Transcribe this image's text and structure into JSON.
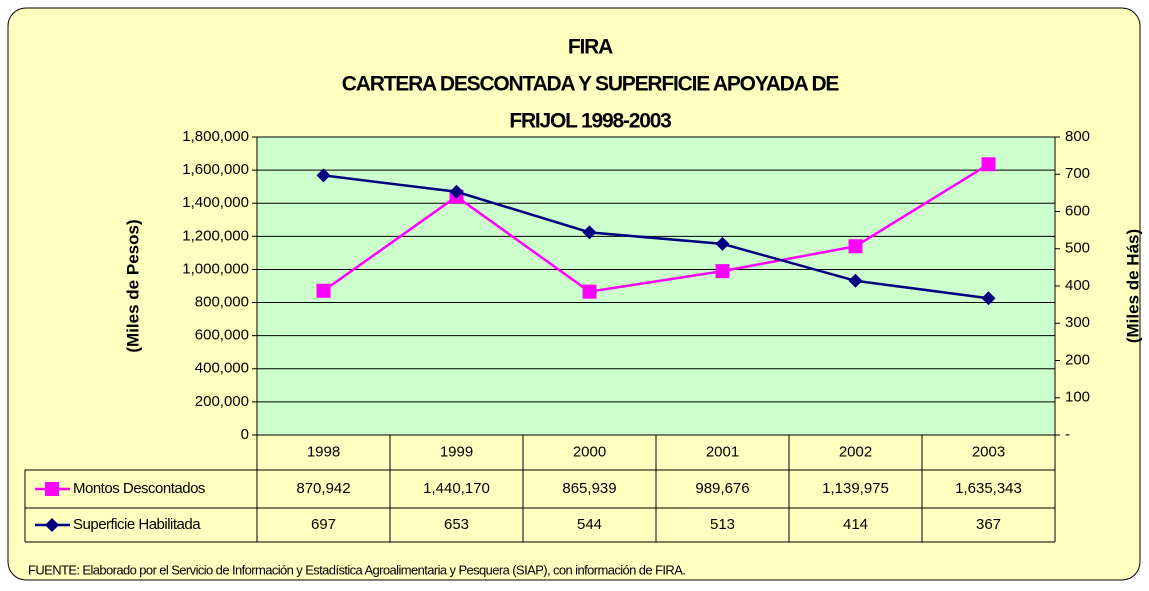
{
  "chart_data": {
    "type": "line",
    "title": [
      "FIRA",
      "CARTERA DESCONTADA Y SUPERFICIE APOYADA DE",
      "FRIJOL 1998-2003"
    ],
    "ylabel": "(Miles de Pesos)",
    "y2label": "(Miles de Hás)",
    "categories": [
      "1998",
      "1999",
      "2000",
      "2001",
      "2002",
      "2003"
    ],
    "series": [
      {
        "name": "Montos Descontados",
        "color": "#ff00ff",
        "marker": "square",
        "values": [
          870942,
          1440170,
          865939,
          989676,
          1139975,
          1635343
        ],
        "value_labels": [
          "870,942",
          "1,440,170",
          "865,939",
          "989,676",
          "1,139,975",
          "1,635,343"
        ]
      },
      {
        "name": "Superficie Habilitada",
        "color": "#000080",
        "marker": "diamond",
        "axis": "y2",
        "values": [
          697,
          653,
          544,
          513,
          414,
          367
        ]
      }
    ],
    "ylim": [
      0,
      1800000
    ],
    "yticks": [
      0,
      {
        "value": 200000,
        "label": "200,000"
      },
      {
        "value": 400000,
        "label": "400,000"
      },
      {
        "value": 600000,
        "label": "600,000"
      },
      {
        "value": 800000,
        "label": "800,000"
      },
      {
        "value": 1000000,
        "label": "1,000,000"
      },
      {
        "value": 1200000,
        "label": "1,200,000"
      },
      {
        "value": 1400000,
        "label": "1,400,000"
      },
      {
        "value": 1600000,
        "label": "1,600,000"
      },
      {
        "value": 1800000,
        "label": "1,800,000"
      }
    ],
    "y2lim": [
      0,
      800
    ],
    "y2ticks": [
      {
        "value": 0,
        "label": "-"
      },
      100,
      200,
      300,
      400,
      500,
      600,
      700,
      800
    ],
    "grid": true,
    "legend": "table",
    "source": "FUENTE: Elaborado por el Servicio de Información y Estadística Agroalimentaria y Pesquera (SIAP), con información de FIRA."
  }
}
